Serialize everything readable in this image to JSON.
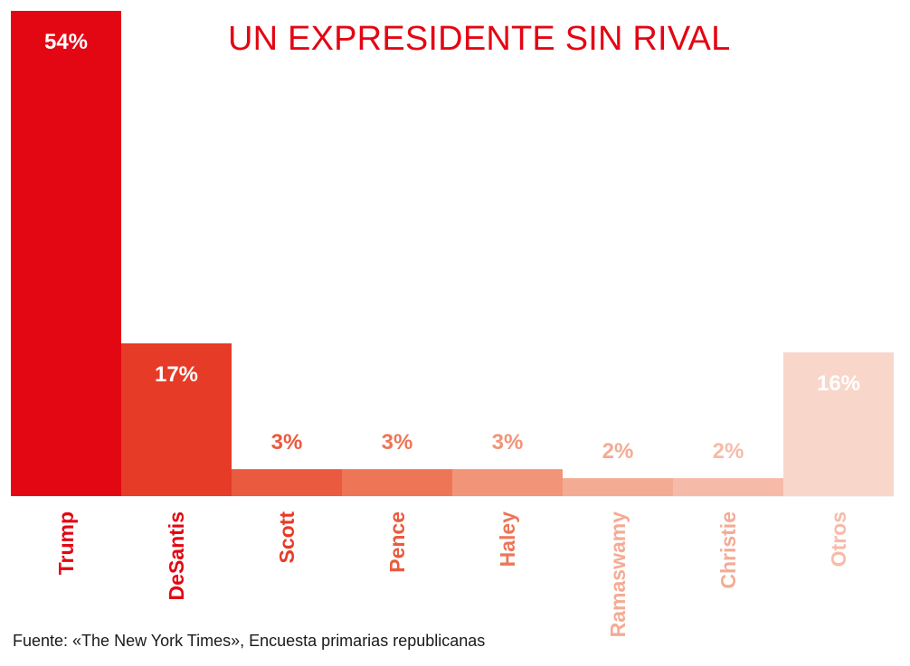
{
  "chart_data": {
    "type": "bar",
    "title": "UN EXPRESIDENTE SIN RIVAL",
    "categories": [
      "Trump",
      "DeSantis",
      "Scott",
      "Pence",
      "Haley",
      "Ramaswamy",
      "Christie",
      "Otros"
    ],
    "values": [
      54,
      17,
      3,
      3,
      3,
      2,
      2,
      16
    ],
    "value_labels": [
      "54%",
      "17%",
      "3%",
      "3%",
      "3%",
      "2%",
      "2%",
      "16%"
    ],
    "colors": [
      "#e30613",
      "#e63b27",
      "#ea5a3f",
      "#ee7556",
      "#f29478",
      "#f4ab94",
      "#f6bba8",
      "#f9d6ca"
    ],
    "ylim": [
      0,
      54
    ],
    "xlabel": "",
    "ylabel": "",
    "grid": false,
    "legend": "none"
  },
  "footer": {
    "source": "Fuente: «The New York Times», Encuesta primarias republicanas"
  }
}
